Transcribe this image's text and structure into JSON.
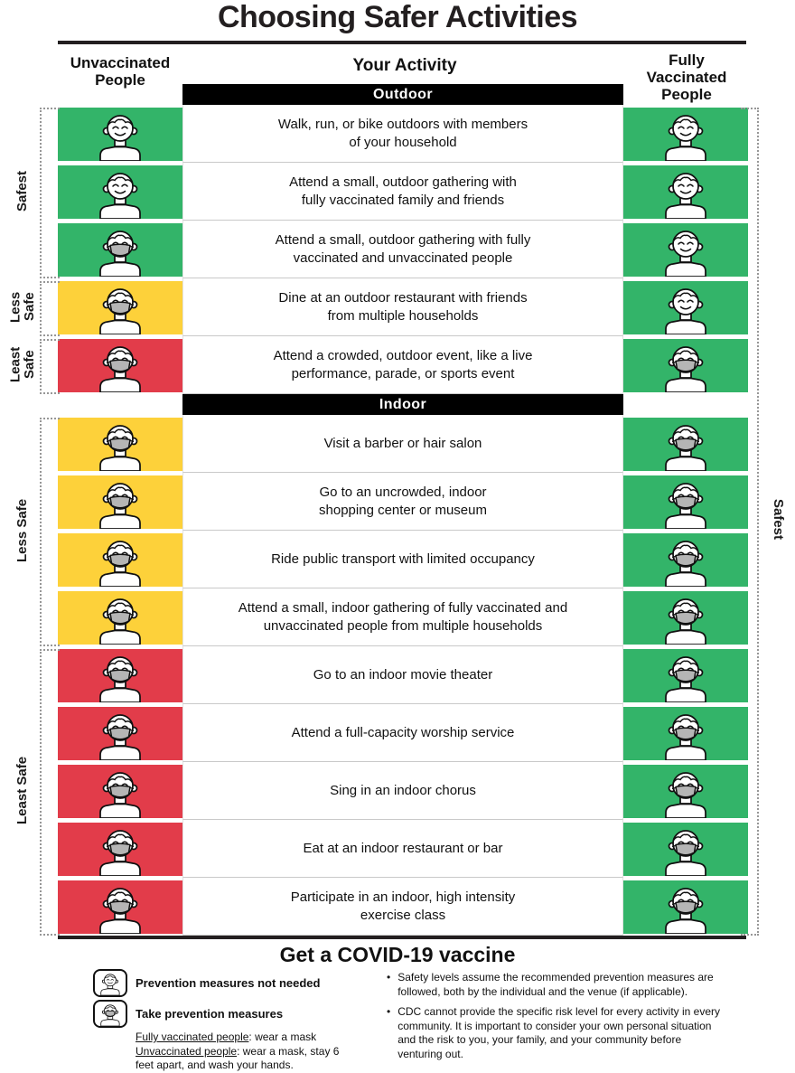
{
  "title": "Choosing Safer Activities",
  "header": {
    "left": "Unvaccinated People",
    "center": "Your Activity",
    "right": "Fully Vaccinated People"
  },
  "colors": {
    "green": "#33b469",
    "yellow": "#fdd13a",
    "red": "#e23c4a",
    "mask": "#b5b5b5",
    "banner": "#000000"
  },
  "sections": [
    {
      "label": "Outdoor",
      "rows": [
        {
          "activity": "Walk, run, or bike outdoors with members\nof your household",
          "unvaccinated": {
            "color": "green",
            "masked": false
          },
          "vaccinated": {
            "color": "green",
            "masked": false
          }
        },
        {
          "activity": "Attend a small, outdoor gathering with\nfully vaccinated family and friends",
          "unvaccinated": {
            "color": "green",
            "masked": false
          },
          "vaccinated": {
            "color": "green",
            "masked": false
          }
        },
        {
          "activity": "Attend a small, outdoor gathering with fully\nvaccinated and unvaccinated people",
          "unvaccinated": {
            "color": "green",
            "masked": true
          },
          "vaccinated": {
            "color": "green",
            "masked": false
          }
        },
        {
          "activity": "Dine at an outdoor restaurant with friends\nfrom multiple households",
          "unvaccinated": {
            "color": "yellow",
            "masked": true
          },
          "vaccinated": {
            "color": "green",
            "masked": false
          }
        },
        {
          "activity": "Attend a crowded, outdoor event, like a live\nperformance, parade, or sports event",
          "unvaccinated": {
            "color": "red",
            "masked": true
          },
          "vaccinated": {
            "color": "green",
            "masked": true
          }
        }
      ],
      "left_brackets": [
        {
          "label": "Safest",
          "start": 0,
          "span": 3
        },
        {
          "label": "Less Safe",
          "start": 3,
          "span": 1
        },
        {
          "label": "Least Safe",
          "start": 4,
          "span": 1
        }
      ]
    },
    {
      "label": "Indoor",
      "rows": [
        {
          "activity": "Visit a barber or hair salon",
          "unvaccinated": {
            "color": "yellow",
            "masked": true
          },
          "vaccinated": {
            "color": "green",
            "masked": true
          }
        },
        {
          "activity": "Go to an uncrowded, indoor\nshopping center or museum",
          "unvaccinated": {
            "color": "yellow",
            "masked": true
          },
          "vaccinated": {
            "color": "green",
            "masked": true
          }
        },
        {
          "activity": "Ride public transport with limited occupancy",
          "unvaccinated": {
            "color": "yellow",
            "masked": true
          },
          "vaccinated": {
            "color": "green",
            "masked": true
          }
        },
        {
          "activity": "Attend a small, indoor gathering of fully vaccinated and\nunvaccinated people from multiple households",
          "unvaccinated": {
            "color": "yellow",
            "masked": true
          },
          "vaccinated": {
            "color": "green",
            "masked": true
          }
        },
        {
          "activity": "Go to an indoor movie theater",
          "unvaccinated": {
            "color": "red",
            "masked": true
          },
          "vaccinated": {
            "color": "green",
            "masked": true
          }
        },
        {
          "activity": "Attend a full-capacity worship service",
          "unvaccinated": {
            "color": "red",
            "masked": true
          },
          "vaccinated": {
            "color": "green",
            "masked": true
          }
        },
        {
          "activity": "Sing in an indoor chorus",
          "unvaccinated": {
            "color": "red",
            "masked": true
          },
          "vaccinated": {
            "color": "green",
            "masked": true
          }
        },
        {
          "activity": "Eat at an indoor restaurant or bar",
          "unvaccinated": {
            "color": "red",
            "masked": true
          },
          "vaccinated": {
            "color": "green",
            "masked": true
          }
        },
        {
          "activity": "Participate in an indoor, high intensity\nexercise class",
          "unvaccinated": {
            "color": "red",
            "masked": true
          },
          "vaccinated": {
            "color": "green",
            "masked": true
          }
        }
      ],
      "left_brackets": [
        {
          "label": "Less Safe",
          "start": 0,
          "span": 4
        },
        {
          "label": "Least Safe",
          "start": 4,
          "span": 5
        }
      ]
    }
  ],
  "right_bracket": {
    "label": "Safest"
  },
  "footer": {
    "headline": "Get a COVID-19 vaccine",
    "legend": [
      {
        "masked": false,
        "label": "Prevention measures not needed"
      },
      {
        "masked": true,
        "label": "Take prevention measures"
      }
    ],
    "legend_notes": [
      {
        "lead": "Fully vaccinated people",
        "rest": ": wear a mask"
      },
      {
        "lead": "Unvaccinated people",
        "rest": ": wear a mask, stay 6 feet apart, and wash your hands."
      }
    ],
    "bullets": [
      "Safety levels assume the recommended prevention measures are followed, both by the individual and the venue (if applicable).",
      "CDC cannot provide the specific risk level for every activity in every community. It is important to consider your own personal situation and the risk to you, your family, and your community before venturing out."
    ]
  }
}
